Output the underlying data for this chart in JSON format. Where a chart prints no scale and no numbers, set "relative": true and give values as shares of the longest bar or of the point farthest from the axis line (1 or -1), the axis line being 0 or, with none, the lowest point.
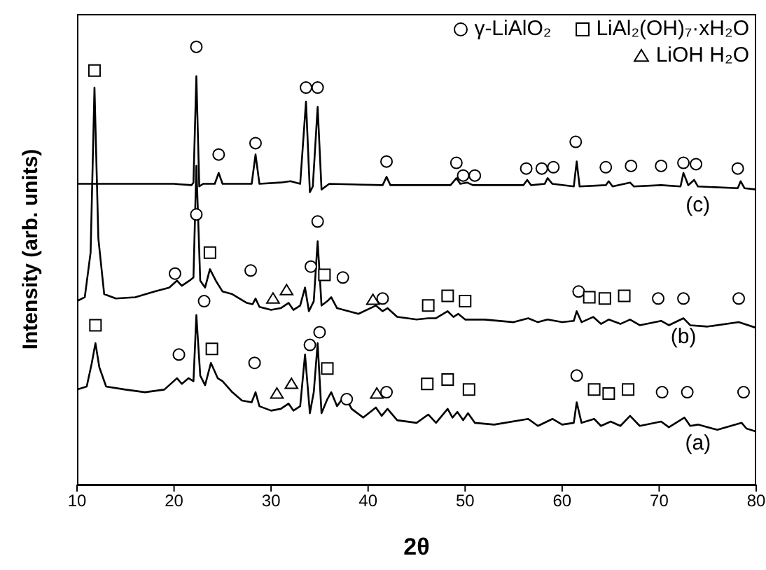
{
  "chart_data": {
    "type": "line",
    "xlabel": "2θ",
    "ylabel": "Intensity (arb. units)",
    "relative": true,
    "xlim": [
      10,
      80
    ],
    "xticks": [
      10,
      20,
      30,
      40,
      50,
      60,
      70,
      80
    ],
    "legend": "top right",
    "grid": false,
    "series": [
      {
        "name": "(c)",
        "type": "line",
        "color": "#000000",
        "marker": "none",
        "x": [
          10,
          20,
          21.8,
          22.0,
          22.3,
          22.6,
          23,
          24.2,
          24.6,
          25,
          28,
          28.4,
          28.8,
          31,
          32,
          33,
          33.6,
          34.0,
          34.3,
          34.8,
          35.2,
          36,
          41.5,
          41.9,
          42.3,
          48.5,
          49.1,
          49.5,
          50.2,
          50.8,
          56,
          56.4,
          56.8,
          58.2,
          58.5,
          59,
          61.2,
          61.5,
          61.8,
          64.5,
          64.8,
          65.2,
          67,
          67.4,
          70.2,
          72.2,
          72.5,
          73,
          73.6,
          74,
          78.1,
          78.4,
          78.8,
          80
        ],
        "values": [
          0.687,
          0.687,
          0.684,
          0.69,
          0.933,
          0.681,
          0.687,
          0.687,
          0.712,
          0.687,
          0.687,
          0.754,
          0.687,
          0.69,
          0.693,
          0.687,
          0.875,
          0.668,
          0.681,
          0.863,
          0.674,
          0.687,
          0.684,
          0.703,
          0.684,
          0.684,
          0.7,
          0.687,
          0.69,
          0.684,
          0.684,
          0.696,
          0.684,
          0.687,
          0.7,
          0.687,
          0.681,
          0.738,
          0.681,
          0.684,
          0.693,
          0.681,
          0.69,
          0.681,
          0.684,
          0.681,
          0.712,
          0.684,
          0.696,
          0.681,
          0.677,
          0.693,
          0.677,
          0.674
        ]
      },
      {
        "name": "(b)",
        "type": "line",
        "color": "#000000",
        "marker": "none",
        "x": [
          10,
          10.8,
          11.4,
          11.8,
          12.2,
          12.8,
          14,
          16,
          18,
          19.5,
          20.3,
          20.8,
          21.6,
          22.0,
          22.3,
          22.7,
          23.2,
          23.7,
          24.3,
          25,
          26,
          27.5,
          28.1,
          28.4,
          28.8,
          30,
          31,
          31.8,
          32.3,
          33,
          33.5,
          33.9,
          34.4,
          34.8,
          35.2,
          35.8,
          36.2,
          36.8,
          38,
          39,
          40.8,
          41.5,
          42,
          43,
          45,
          46.2,
          47,
          48.2,
          48.8,
          49.3,
          50,
          52,
          55,
          56.5,
          57.5,
          58.5,
          60,
          61.2,
          61.5,
          62,
          63.2,
          64,
          64.8,
          66,
          67,
          68,
          70.2,
          71,
          72.5,
          73.2,
          75,
          78.2,
          80
        ],
        "values": [
          0.419,
          0.428,
          0.53,
          0.907,
          0.562,
          0.435,
          0.425,
          0.428,
          0.441,
          0.45,
          0.466,
          0.454,
          0.466,
          0.473,
          0.728,
          0.466,
          0.45,
          0.492,
          0.466,
          0.441,
          0.435,
          0.415,
          0.412,
          0.425,
          0.406,
          0.399,
          0.403,
          0.415,
          0.399,
          0.409,
          0.45,
          0.396,
          0.419,
          0.556,
          0.409,
          0.419,
          0.428,
          0.403,
          0.396,
          0.39,
          0.409,
          0.396,
          0.403,
          0.383,
          0.377,
          0.38,
          0.38,
          0.396,
          0.383,
          0.39,
          0.377,
          0.377,
          0.371,
          0.38,
          0.371,
          0.377,
          0.371,
          0.374,
          0.396,
          0.371,
          0.383,
          0.367,
          0.377,
          0.367,
          0.377,
          0.364,
          0.374,
          0.364,
          0.38,
          0.364,
          0.361,
          0.371,
          0.358
        ]
      },
      {
        "name": "(a)",
        "type": "line",
        "color": "#000000",
        "marker": "none",
        "x": [
          10,
          11,
          11.5,
          11.9,
          12.3,
          13,
          15,
          17,
          19,
          20.3,
          20.8,
          21.5,
          22.0,
          22.3,
          22.7,
          23.2,
          23.8,
          24.5,
          25,
          26,
          27,
          28,
          28.4,
          28.8,
          30,
          31,
          31.8,
          32.3,
          33,
          33.5,
          34.0,
          34.4,
          34.8,
          35.2,
          35.8,
          36.2,
          36.8,
          37.6,
          38.3,
          39.5,
          40.8,
          41.4,
          42,
          43,
          45,
          46.2,
          47,
          48.2,
          48.7,
          49.2,
          49.8,
          50.3,
          51,
          53,
          56.5,
          57.5,
          59,
          60,
          61.2,
          61.5,
          62,
          63.3,
          64,
          65,
          66,
          67,
          68,
          70.2,
          71,
          72.6,
          73.2,
          74,
          76,
          78.5,
          79,
          80
        ],
        "values": [
          0.217,
          0.224,
          0.275,
          0.323,
          0.268,
          0.224,
          0.217,
          0.211,
          0.217,
          0.243,
          0.23,
          0.243,
          0.236,
          0.387,
          0.249,
          0.227,
          0.278,
          0.243,
          0.236,
          0.211,
          0.192,
          0.188,
          0.211,
          0.179,
          0.169,
          0.173,
          0.185,
          0.169,
          0.179,
          0.297,
          0.163,
          0.211,
          0.323,
          0.163,
          0.195,
          0.211,
          0.179,
          0.204,
          0.173,
          0.153,
          0.176,
          0.157,
          0.173,
          0.147,
          0.141,
          0.16,
          0.141,
          0.173,
          0.153,
          0.166,
          0.147,
          0.163,
          0.141,
          0.137,
          0.15,
          0.134,
          0.15,
          0.137,
          0.141,
          0.188,
          0.141,
          0.15,
          0.134,
          0.144,
          0.134,
          0.157,
          0.134,
          0.144,
          0.131,
          0.153,
          0.134,
          0.137,
          0.125,
          0.141,
          0.128,
          0.121
        ]
      },
      {
        "name": "γ-LiAlO₂",
        "type": "scatter",
        "color": "#000000",
        "marker": "circle",
        "x": [
          22.3,
          24.6,
          28.4,
          33.6,
          34.8,
          41.9,
          49.1,
          49.8,
          51.0,
          56.3,
          57.9,
          59.1,
          61.4,
          64.5,
          67.1,
          70.2,
          72.5,
          73.8,
          78.1,
          20.1,
          22.3,
          27.9,
          34.1,
          34.8,
          37.4,
          41.5,
          61.7,
          69.9,
          72.5,
          78.2,
          20.5,
          23.1,
          28.3,
          34.0,
          35.0,
          37.8,
          41.9,
          61.5,
          70.3,
          72.9,
          78.7
        ],
        "values": [
          1.0,
          0.754,
          0.78,
          0.907,
          0.907,
          0.738,
          0.735,
          0.706,
          0.706,
          0.722,
          0.722,
          0.725,
          0.783,
          0.725,
          0.728,
          0.728,
          0.735,
          0.732,
          0.722,
          0.482,
          0.617,
          0.489,
          0.498,
          0.601,
          0.473,
          0.425,
          0.441,
          0.425,
          0.425,
          0.425,
          0.297,
          0.419,
          0.278,
          0.319,
          0.348,
          0.195,
          0.211,
          0.249,
          0.211,
          0.211,
          0.211
        ]
      },
      {
        "name": "LiAl₂(OH)₇·xH₂O",
        "type": "scatter",
        "color": "#000000",
        "marker": "square",
        "x": [
          11.8,
          23.7,
          35.5,
          46.2,
          48.2,
          50.0,
          62.8,
          64.4,
          66.4,
          11.9,
          23.9,
          35.8,
          46.1,
          48.2,
          50.4,
          63.3,
          64.8,
          66.8
        ],
        "values": [
          0.946,
          0.53,
          0.479,
          0.409,
          0.431,
          0.419,
          0.428,
          0.425,
          0.431,
          0.364,
          0.31,
          0.265,
          0.23,
          0.24,
          0.217,
          0.217,
          0.208,
          0.217
        ]
      },
      {
        "name": "LiOH H₂O",
        "type": "scatter",
        "color": "#000000",
        "marker": "triangle",
        "x": [
          30.2,
          31.6,
          40.5,
          30.6,
          32.1,
          40.9
        ],
        "values": [
          0.425,
          0.444,
          0.422,
          0.208,
          0.23,
          0.208
        ]
      }
    ]
  }
}
